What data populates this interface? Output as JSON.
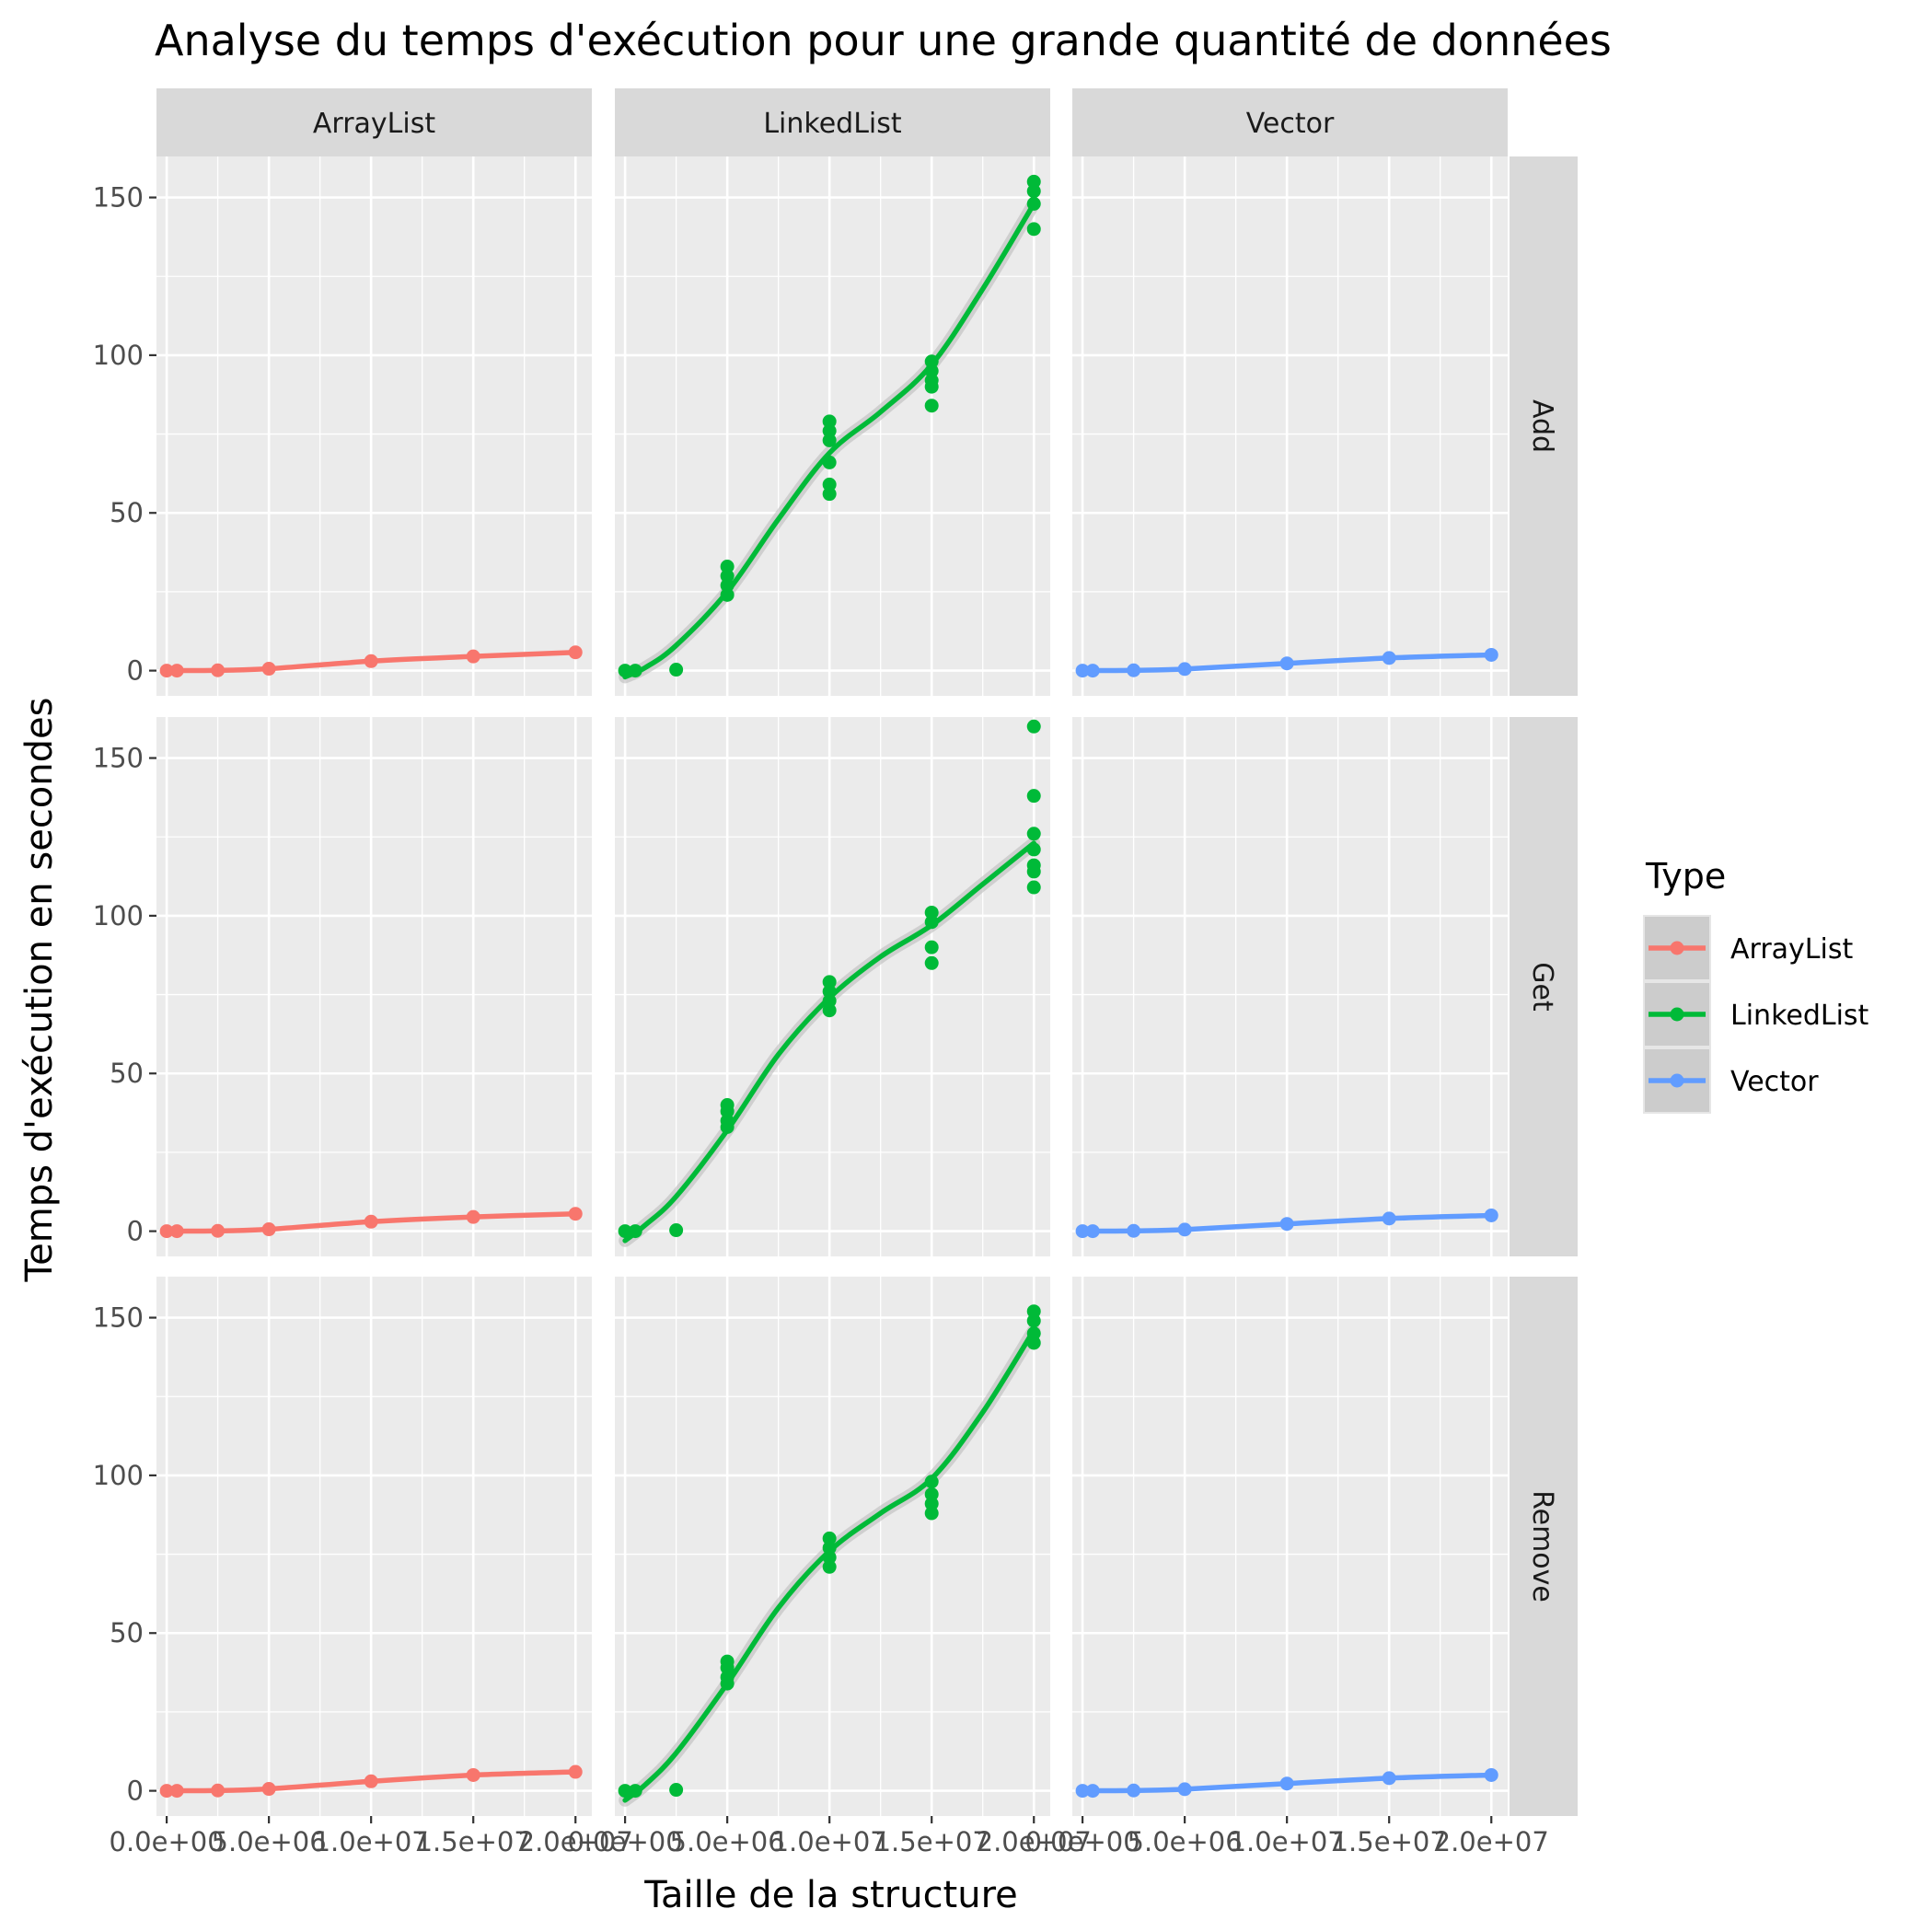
{
  "chart_data": {
    "type": "scatter",
    "title": "Analyse du temps d'exécution pour une grande quantité de données",
    "xlabel": "Taille de la structure",
    "ylabel": "Temps d'exécution en secondes",
    "facet_columns": [
      "ArrayList",
      "LinkedList",
      "Vector"
    ],
    "facet_rows": [
      "Add",
      "Get",
      "Remove"
    ],
    "xlim": [
      -500000,
      20800000
    ],
    "ylim": [
      -8,
      163
    ],
    "x_ticks": [
      0,
      5000000,
      10000000,
      15000000,
      20000000
    ],
    "x_tick_labels": [
      "0.0e+00",
      "5.0e+06",
      "1.0e+07",
      "1.5e+07",
      "2.0e+07"
    ],
    "y_ticks": [
      0,
      50,
      100,
      150
    ],
    "y_tick_labels": [
      "0",
      "50",
      "100",
      "150"
    ],
    "grid": true,
    "legend": {
      "title": "Type",
      "position": "right",
      "entries": [
        "ArrayList",
        "LinkedList",
        "Vector"
      ]
    },
    "colors": {
      "ArrayList": "#F8766D",
      "LinkedList": "#00BA38",
      "Vector": "#619CFF",
      "panel_bg": "#EBEBEB",
      "strip_bg": "#D9D9D9",
      "grid": "#FFFFFF"
    },
    "sizes": [
      0,
      500000,
      2500000,
      5000000,
      10000000,
      15000000,
      20000000
    ],
    "series": [
      {
        "name": "ArrayList",
        "operation": "Add",
        "points": [
          [
            0,
            0
          ],
          [
            500000,
            0
          ],
          [
            2500000,
            0.1
          ],
          [
            5000000,
            0.6
          ],
          [
            10000000,
            3
          ],
          [
            15000000,
            4.5
          ],
          [
            20000000,
            5.8
          ]
        ]
      },
      {
        "name": "ArrayList",
        "operation": "Get",
        "points": [
          [
            0,
            0
          ],
          [
            500000,
            0
          ],
          [
            2500000,
            0.1
          ],
          [
            5000000,
            0.6
          ],
          [
            10000000,
            3
          ],
          [
            15000000,
            4.5
          ],
          [
            20000000,
            5.5
          ]
        ]
      },
      {
        "name": "ArrayList",
        "operation": "Remove",
        "points": [
          [
            0,
            0
          ],
          [
            500000,
            0
          ],
          [
            2500000,
            0.1
          ],
          [
            5000000,
            0.6
          ],
          [
            10000000,
            3
          ],
          [
            15000000,
            5
          ],
          [
            20000000,
            6
          ]
        ]
      },
      {
        "name": "LinkedList",
        "operation": "Add",
        "points": [
          [
            0,
            0
          ],
          [
            500000,
            0
          ],
          [
            2500000,
            0.3
          ],
          [
            5000000,
            24
          ],
          [
            5000000,
            27
          ],
          [
            5000000,
            30
          ],
          [
            5000000,
            33
          ],
          [
            10000000,
            56
          ],
          [
            10000000,
            59
          ],
          [
            10000000,
            66
          ],
          [
            10000000,
            73
          ],
          [
            10000000,
            76
          ],
          [
            10000000,
            79
          ],
          [
            15000000,
            84
          ],
          [
            15000000,
            90
          ],
          [
            15000000,
            92
          ],
          [
            15000000,
            95
          ],
          [
            15000000,
            98
          ],
          [
            20000000,
            140
          ],
          [
            20000000,
            148
          ],
          [
            20000000,
            152
          ],
          [
            20000000,
            155
          ]
        ]
      },
      {
        "name": "LinkedList",
        "operation": "Get",
        "points": [
          [
            0,
            0
          ],
          [
            500000,
            0
          ],
          [
            2500000,
            0.3
          ],
          [
            5000000,
            33
          ],
          [
            5000000,
            35
          ],
          [
            5000000,
            38
          ],
          [
            5000000,
            40
          ],
          [
            10000000,
            70
          ],
          [
            10000000,
            73
          ],
          [
            10000000,
            76
          ],
          [
            10000000,
            79
          ],
          [
            15000000,
            85
          ],
          [
            15000000,
            90
          ],
          [
            15000000,
            98
          ],
          [
            15000000,
            101
          ],
          [
            20000000,
            109
          ],
          [
            20000000,
            114
          ],
          [
            20000000,
            116
          ],
          [
            20000000,
            121
          ],
          [
            20000000,
            126
          ],
          [
            20000000,
            138
          ],
          [
            20000000,
            160
          ]
        ]
      },
      {
        "name": "LinkedList",
        "operation": "Remove",
        "points": [
          [
            0,
            0
          ],
          [
            500000,
            0
          ],
          [
            2500000,
            0.3
          ],
          [
            5000000,
            34
          ],
          [
            5000000,
            36
          ],
          [
            5000000,
            39
          ],
          [
            5000000,
            41
          ],
          [
            10000000,
            71
          ],
          [
            10000000,
            74
          ],
          [
            10000000,
            77
          ],
          [
            10000000,
            80
          ],
          [
            15000000,
            88
          ],
          [
            15000000,
            91
          ],
          [
            15000000,
            94
          ],
          [
            15000000,
            98
          ],
          [
            20000000,
            142
          ],
          [
            20000000,
            145
          ],
          [
            20000000,
            149
          ],
          [
            20000000,
            152
          ]
        ]
      },
      {
        "name": "Vector",
        "operation": "Add",
        "points": [
          [
            0,
            0
          ],
          [
            500000,
            0
          ],
          [
            2500000,
            0.1
          ],
          [
            5000000,
            0.5
          ],
          [
            10000000,
            2.3
          ],
          [
            15000000,
            4
          ],
          [
            20000000,
            5
          ]
        ]
      },
      {
        "name": "Vector",
        "operation": "Get",
        "points": [
          [
            0,
            0
          ],
          [
            500000,
            0
          ],
          [
            2500000,
            0.1
          ],
          [
            5000000,
            0.5
          ],
          [
            10000000,
            2.3
          ],
          [
            15000000,
            4
          ],
          [
            20000000,
            5
          ]
        ]
      },
      {
        "name": "Vector",
        "operation": "Remove",
        "points": [
          [
            0,
            0
          ],
          [
            500000,
            0
          ],
          [
            2500000,
            0.1
          ],
          [
            5000000,
            0.5
          ],
          [
            10000000,
            2.3
          ],
          [
            15000000,
            4
          ],
          [
            20000000,
            5
          ]
        ]
      }
    ],
    "smooth_lines": [
      {
        "name": "ArrayList",
        "operation": "Add",
        "x": [
          0,
          500000,
          2500000,
          5000000,
          10000000,
          15000000,
          20000000
        ],
        "y": [
          0,
          0,
          0.1,
          0.6,
          3,
          4.5,
          5.8
        ]
      },
      {
        "name": "ArrayList",
        "operation": "Get",
        "x": [
          0,
          500000,
          2500000,
          5000000,
          10000000,
          15000000,
          20000000
        ],
        "y": [
          0,
          0,
          0.1,
          0.6,
          3,
          4.5,
          5.5
        ]
      },
      {
        "name": "ArrayList",
        "operation": "Remove",
        "x": [
          0,
          500000,
          2500000,
          5000000,
          10000000,
          15000000,
          20000000
        ],
        "y": [
          0,
          0,
          0.1,
          0.6,
          3,
          5,
          6
        ]
      },
      {
        "name": "LinkedList",
        "operation": "Add",
        "x": [
          0,
          1000000,
          2500000,
          5000000,
          7500000,
          10000000,
          12500000,
          15000000,
          17500000,
          20000000
        ],
        "y": [
          -2,
          1,
          8,
          25,
          48,
          69,
          82,
          97,
          121,
          148
        ]
      },
      {
        "name": "LinkedList",
        "operation": "Get",
        "x": [
          0,
          1000000,
          2500000,
          5000000,
          7500000,
          10000000,
          12500000,
          15000000,
          17500000,
          20000000
        ],
        "y": [
          -3,
          2,
          11,
          32,
          56,
          74,
          87,
          97,
          110,
          123
        ]
      },
      {
        "name": "LinkedList",
        "operation": "Remove",
        "x": [
          0,
          1000000,
          2500000,
          5000000,
          7500000,
          10000000,
          12500000,
          15000000,
          17500000,
          20000000
        ],
        "y": [
          -3,
          2,
          12,
          34,
          58,
          76,
          88,
          99,
          120,
          146
        ]
      },
      {
        "name": "Vector",
        "operation": "Add",
        "x": [
          0,
          500000,
          2500000,
          5000000,
          10000000,
          15000000,
          20000000
        ],
        "y": [
          0,
          0,
          0.1,
          0.5,
          2.3,
          4,
          5
        ]
      },
      {
        "name": "Vector",
        "operation": "Get",
        "x": [
          0,
          500000,
          2500000,
          5000000,
          10000000,
          15000000,
          20000000
        ],
        "y": [
          0,
          0,
          0.1,
          0.5,
          2.3,
          4,
          5
        ]
      },
      {
        "name": "Vector",
        "operation": "Remove",
        "x": [
          0,
          500000,
          2500000,
          5000000,
          10000000,
          15000000,
          20000000
        ],
        "y": [
          0,
          0,
          0.1,
          0.5,
          2.3,
          4,
          5
        ]
      }
    ]
  }
}
